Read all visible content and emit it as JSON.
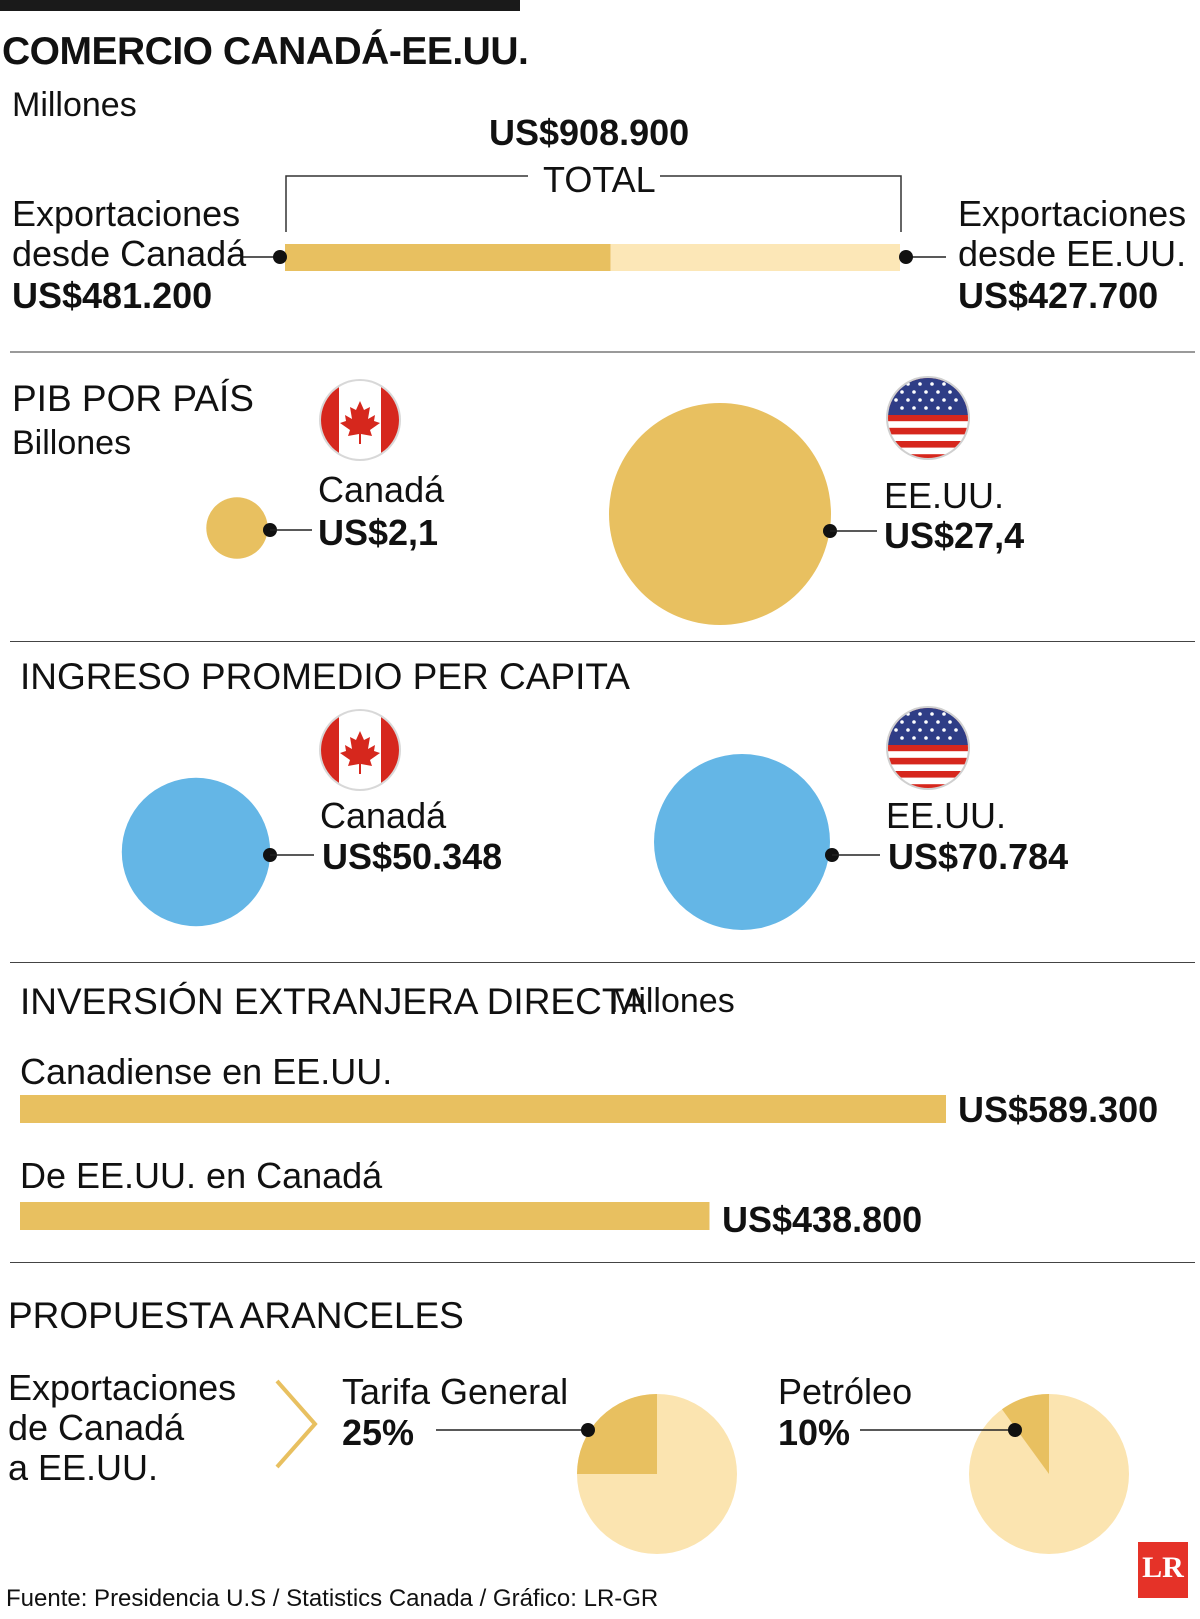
{
  "title": "COMERCIO CANADÁ-EE.UU.",
  "trade": {
    "unit": "Millones",
    "total_value": "US$908.900",
    "total_label": "TOTAL",
    "canada_label_1": "Exportaciones",
    "canada_label_2": "desde Canadá",
    "canada_value": "US$481.200",
    "us_label_1": "Exportaciones",
    "us_label_2": "desde EE.UU.",
    "us_value": "US$427.700",
    "canada_amount": 481200,
    "us_amount": 427700,
    "total_amount": 908900
  },
  "gdp": {
    "title": "PIB POR PAÍS",
    "unit": "Billones",
    "canada_name": "Canadá",
    "canada_value": "US$2,1",
    "canada_amount": 2.1,
    "us_name": "EE.UU.",
    "us_value": "US$27,4",
    "us_amount": 27.4
  },
  "income": {
    "title": "INGRESO PROMEDIO PER CAPITA",
    "canada_name": "Canadá",
    "canada_value": "US$50.348",
    "canada_amount": 50348,
    "us_name": "EE.UU.",
    "us_value": "US$70.784",
    "us_amount": 70784
  },
  "fdi": {
    "title": "INVERSIÓN EXTRANJERA DIRECTA",
    "unit": "Millones",
    "bars": [
      {
        "label": "Canadiense en EE.UU.",
        "value_text": "US$589.300",
        "value": 589300
      },
      {
        "label": "De EE.UU. en Canadá",
        "value_text": "US$438.800",
        "value": 438800
      }
    ]
  },
  "tariffs": {
    "title": "PROPUESTA ARANCELES",
    "desc_1": "Exportaciones",
    "desc_2": "de Canadá",
    "desc_3": "a EE.UU.",
    "general_label": "Tarifa General",
    "general_value": "25%",
    "general_pct": 25,
    "oil_label": "Petróleo",
    "oil_value": "10%",
    "oil_pct": 10
  },
  "source": "Fuente: Presidencia U.S / Statistics Canada / Gráfico: LR-GR",
  "logo_text": "LR",
  "colors": {
    "gold": "#e8c060",
    "light_gold": "#fce7b7",
    "pie_light": "#fbe4b0",
    "blue": "#64b6e6",
    "red": "#d6271d",
    "flag_blue": "#2f3d86"
  },
  "chart_data": [
    {
      "type": "bar",
      "title": "COMERCIO CANADÁ-EE.UU.",
      "unit": "Millones",
      "categories": [
        "Exportaciones desde Canadá",
        "Exportaciones desde EE.UU."
      ],
      "values": [
        481200,
        427700
      ],
      "total": 908900
    },
    {
      "type": "bubble",
      "title": "PIB POR PAÍS",
      "unit": "Billones",
      "categories": [
        "Canadá",
        "EE.UU."
      ],
      "values": [
        2.1,
        27.4
      ]
    },
    {
      "type": "bubble",
      "title": "INGRESO PROMEDIO PER CAPITA",
      "categories": [
        "Canadá",
        "EE.UU."
      ],
      "values": [
        50348,
        70784
      ]
    },
    {
      "type": "bar",
      "title": "INVERSIÓN EXTRANJERA DIRECTA",
      "unit": "Millones",
      "categories": [
        "Canadiense en EE.UU.",
        "De EE.UU. en Canadá"
      ],
      "values": [
        589300,
        438800
      ]
    },
    {
      "type": "pie",
      "title": "PROPUESTA ARANCELES",
      "categories": [
        "Tarifa General",
        "Petróleo"
      ],
      "values": [
        25,
        10
      ],
      "unit": "%"
    }
  ]
}
